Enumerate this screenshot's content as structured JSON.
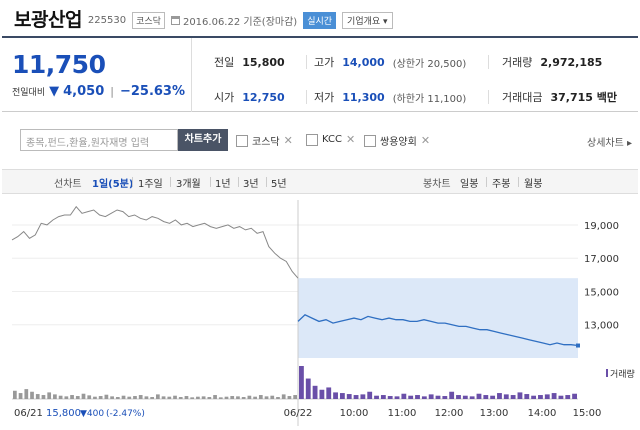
{
  "header": {
    "name": "보광산업",
    "code": "225530",
    "market_badge": "코스닥",
    "date": "2016.06.22 기준(장마감)",
    "live_button": "실시간",
    "company_button": "기업개요 ▾"
  },
  "quote": {
    "price": "11,750",
    "change_label": "전일대비",
    "change_arrow": "▼",
    "change": "4,050",
    "change_pct": "−25.63%",
    "prev_close": {
      "label": "전일",
      "value": "15,800"
    },
    "open": {
      "label": "시가",
      "value": "12,750"
    },
    "high": {
      "label": "고가",
      "value": "14,000",
      "limit": "(상한가 20,500)"
    },
    "low": {
      "label": "저가",
      "value": "11,300",
      "limit": "(하한가 11,100)"
    },
    "volume": {
      "label": "거래량",
      "value": "2,972,185"
    },
    "amount": {
      "label": "거래대금",
      "value": "37,715 백만"
    }
  },
  "compare": {
    "search_placeholder": "종목,펀드,환율,원자재명 입력",
    "add_button": "차트추가",
    "items": [
      {
        "label": "코스닥"
      },
      {
        "label": "KCC"
      },
      {
        "label": "쌍용양회"
      }
    ],
    "detail_link": "상세차트 ▸"
  },
  "tabs": {
    "line_label": "선차트",
    "line_tabs": [
      "1일(5분)",
      "1주일",
      "3개월",
      "1년",
      "3년",
      "5년"
    ],
    "candle_label": "봉차트",
    "candle_tabs": [
      "일봉",
      "주봉",
      "월봉"
    ]
  },
  "colors": {
    "accent_blue": "#1a4fb8",
    "line_today": "#2f6fc2",
    "line_prev": "#888888",
    "volume_prev": "#999999",
    "volume_today": "#6a4fa8",
    "highlight": "#dce8f8"
  },
  "chart_data": {
    "type": "line",
    "ylim": [
      11000,
      20500
    ],
    "y_ticks": [
      "19,000",
      "17,000",
      "15,000",
      "13,000"
    ],
    "x_ticks": [
      "06/22",
      "10:00",
      "11:00",
      "12:00",
      "13:00",
      "14:00",
      "15:00"
    ],
    "volume_label": "거래량",
    "prev_footer": {
      "date": "06/21",
      "price": "15,800",
      "change": "▼400",
      "pct": "(-2.47%)"
    },
    "prev_day_series": [
      18100,
      18300,
      18600,
      18200,
      18400,
      19100,
      19000,
      19300,
      19500,
      19600,
      19600,
      20100,
      19700,
      19800,
      19900,
      19600,
      19500,
      19700,
      19900,
      19800,
      19500,
      19600,
      19400,
      19300,
      19500,
      19400,
      19200,
      19100,
      19300,
      19000,
      19100,
      18900,
      19000,
      19100,
      18900,
      18800,
      18900,
      19000,
      18800,
      18900,
      18700,
      18800,
      18500,
      18600,
      17700,
      17300,
      17000,
      16800,
      16200,
      15800
    ],
    "today_series": [
      13200,
      13600,
      13400,
      13200,
      13300,
      13100,
      13200,
      13300,
      13400,
      13300,
      13500,
      13400,
      13300,
      13400,
      13300,
      13300,
      13200,
      13200,
      13300,
      13200,
      13100,
      13100,
      13000,
      12900,
      12900,
      12800,
      12700,
      12700,
      12600,
      12500,
      12400,
      12300,
      12200,
      12100,
      12000,
      11900,
      11800,
      11900,
      11800,
      11800,
      11750
    ],
    "prev_volume": [
      25,
      18,
      30,
      22,
      15,
      12,
      20,
      14,
      10,
      8,
      12,
      9,
      16,
      11,
      7,
      9,
      13,
      8,
      6,
      10,
      7,
      9,
      12,
      8,
      6,
      14,
      8,
      7,
      10,
      6,
      9,
      5,
      7,
      8,
      6,
      12,
      5,
      7,
      9,
      8,
      6,
      10,
      7,
      12,
      8,
      10,
      6,
      14,
      9,
      12
    ],
    "today_volume": [
      100,
      62,
      40,
      28,
      35,
      20,
      18,
      15,
      12,
      14,
      22,
      10,
      12,
      9,
      8,
      16,
      10,
      12,
      8,
      14,
      10,
      9,
      22,
      12,
      10,
      8,
      16,
      12,
      10,
      18,
      14,
      12,
      20,
      15,
      10,
      12,
      14,
      18,
      10,
      12,
      16
    ]
  }
}
